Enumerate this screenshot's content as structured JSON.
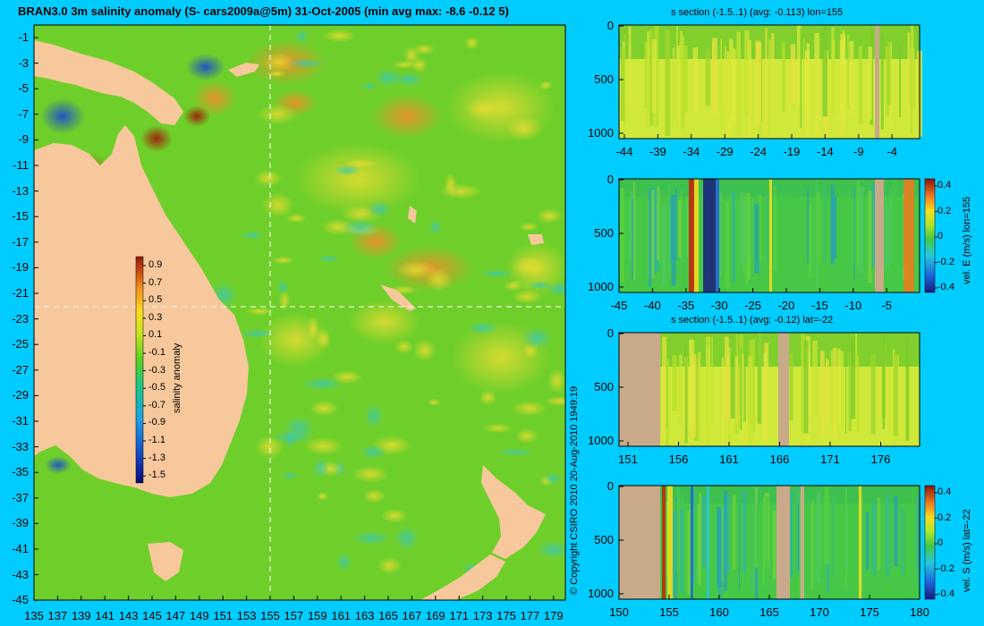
{
  "main_title": "BRAN3.0 3m salinity anomaly (S- cars2009a@5m) 31-Oct-2005 (min avg max: -8.6 -0.12 5)",
  "copyright": "© Copyright CSIRO 2010   20-Aug-2010 1949:19",
  "colors": {
    "background": "#00ccff",
    "land": "#f7c89b",
    "land_section": "#c8aa8a",
    "ocean": "#6fcf2a"
  },
  "map": {
    "lat_ticks": [
      "-1",
      "-3",
      "-5",
      "-7",
      "-9",
      "-11",
      "-13",
      "-15",
      "-17",
      "-19",
      "-21",
      "-23",
      "-25",
      "-27",
      "-29",
      "-31",
      "-33",
      "-35",
      "-37",
      "-39",
      "-41",
      "-43",
      "-45"
    ],
    "lon_ticks": [
      "135",
      "137",
      "139",
      "141",
      "143",
      "145",
      "147",
      "149",
      "151",
      "153",
      "155",
      "157",
      "159",
      "161",
      "163",
      "165",
      "167",
      "169",
      "171",
      "173",
      "175",
      "177",
      "179"
    ],
    "colorbar": {
      "label": "salinity anomaly",
      "ticks": [
        "0.9",
        "0.7",
        "0.5",
        "0.3",
        "0.1",
        "-0.1",
        "-0.3",
        "-0.5",
        "-0.7",
        "-0.9",
        "-1.1",
        "-1.3",
        "-1.5"
      ],
      "range": [
        -1.5,
        0.9
      ]
    }
  },
  "panels": [
    {
      "title": "s section (-1.5..1) (avg: -0.113) lon=155",
      "y_ticks": [
        "0",
        "500",
        "1000"
      ],
      "x_ticks": [
        "-44",
        "-39",
        "-34",
        "-29",
        "-24",
        "-19",
        "-14",
        "-9",
        "-4"
      ],
      "colorbar": null
    },
    {
      "title": "",
      "y_ticks": [
        "0",
        "500",
        "1000"
      ],
      "x_ticks": [
        "-45",
        "-40",
        "-35",
        "-30",
        "-25",
        "-20",
        "-15",
        "-10",
        "-5"
      ],
      "colorbar": {
        "label": "vel. E (m/s) lon=155",
        "ticks": [
          "0.4",
          "0.2",
          "0",
          "-0.2",
          "-0.4"
        ]
      }
    },
    {
      "title": "s section (-1.5..1) (avg: -0.12) lat=-22",
      "y_ticks": [
        "0",
        "500",
        "1000"
      ],
      "x_ticks": [
        "151",
        "156",
        "161",
        "166",
        "171",
        "176"
      ],
      "colorbar": null
    },
    {
      "title": "",
      "y_ticks": [
        "0",
        "500",
        "1000"
      ],
      "x_ticks": [
        "150",
        "155",
        "160",
        "165",
        "170",
        "175",
        "180"
      ],
      "colorbar": {
        "label": "vel. S (m/s) lat=-22",
        "ticks": [
          "0.4",
          "0.2",
          "0",
          "-0.2",
          "-0.4"
        ]
      }
    }
  ],
  "chart_data": [
    {
      "type": "heatmap",
      "title": "BRAN3.0 3m salinity anomaly (S- cars2009a@5m) 31-Oct-2005 (min avg max: -8.6 -0.12 5)",
      "xlabel": "",
      "ylabel": "",
      "xlim": [
        135,
        180
      ],
      "ylim": [
        -45,
        0
      ],
      "colorbar_label": "salinity anomaly",
      "color_range": [
        -1.5,
        0.9
      ],
      "crosshair": {
        "lon": 155,
        "lat": -22
      }
    },
    {
      "type": "heatmap",
      "title": "s section (-1.5..1) (avg: -0.113) lon=155",
      "x_range": [
        -45,
        0
      ],
      "y_range": [
        0,
        1050
      ],
      "y_reversed": true
    },
    {
      "type": "heatmap",
      "title": "",
      "x_range": [
        -45,
        0
      ],
      "y_range": [
        0,
        1050
      ],
      "y_reversed": true,
      "colorbar_label": "vel. E (m/s) lon=155",
      "color_range": [
        -0.4,
        0.45
      ]
    },
    {
      "type": "heatmap",
      "title": "s section (-1.5..1) (avg: -0.12) lat=-22",
      "x_range": [
        150,
        180
      ],
      "y_range": [
        0,
        1050
      ],
      "y_reversed": true
    },
    {
      "type": "heatmap",
      "title": "",
      "x_range": [
        150,
        180
      ],
      "y_range": [
        0,
        1050
      ],
      "y_reversed": true,
      "colorbar_label": "vel. S (m/s) lat=-22",
      "color_range": [
        -0.4,
        0.45
      ]
    }
  ]
}
